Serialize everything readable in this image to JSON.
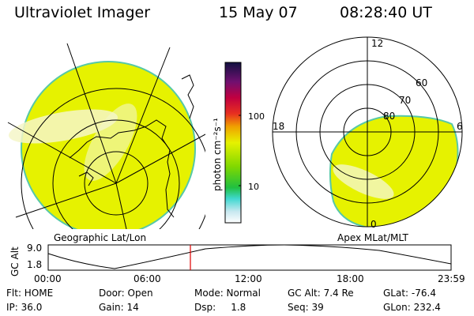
{
  "header": {
    "instrument": "Ultraviolet Imager",
    "date": "15 May 07",
    "time": "08:28:40 UT"
  },
  "colorbar": {
    "label": "photon cm⁻²s⁻¹",
    "ticks": [
      "100",
      "10"
    ]
  },
  "left_map": {
    "caption": "Geographic Lat/Lon",
    "fill_color": "#e6f200",
    "edge_color": "#56c8a8"
  },
  "right_map": {
    "caption": "Apex MLat/MLT",
    "lat_labels": [
      "80",
      "70",
      "60"
    ],
    "mlt_labels": {
      "top": "12",
      "left": "18",
      "right": "6",
      "bottom": "0"
    },
    "fill_color": "#e6f200"
  },
  "altitude_plot": {
    "axis_label": "GC Alt",
    "y_max": "9.0",
    "y_min": "1.8",
    "x_ticks": [
      "00:00",
      "06:00",
      "12:00",
      "18:00",
      "23:59"
    ],
    "current_time_marker_color": "#e00000"
  },
  "status": {
    "row1": {
      "flt": "Flt: HOME",
      "door": "Door: Open",
      "mode": "Mode: Normal",
      "gcalt": "GC Alt: 7.4 Re",
      "glat": "GLat: -76.4"
    },
    "row2": {
      "ip": "IP: 36.0",
      "gain": "Gain: 14",
      "dsp": "Dsp:     1.8",
      "seq": "Seq: 39",
      "glon": "GLon: 232.4"
    }
  }
}
